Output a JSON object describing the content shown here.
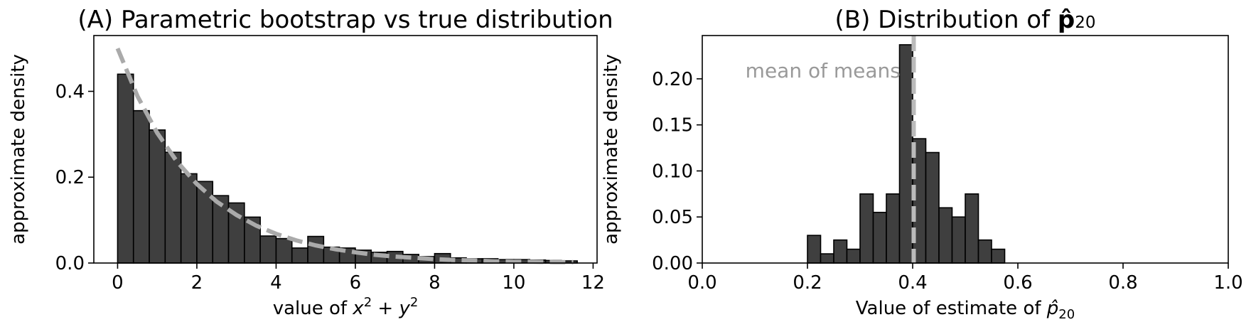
{
  "chart_data": [
    {
      "type": "bar",
      "title": "(A) Parametric bootstrap vs true distribution",
      "xlabel": "value of x² + y²",
      "xlabel_parts": [
        "value of ",
        "x",
        "2",
        " + ",
        "y",
        "2"
      ],
      "ylabel": "approximate density",
      "xlim": [
        -0.6,
        12.1
      ],
      "ylim": [
        0,
        0.53
      ],
      "xticks": [
        0,
        2,
        4,
        6,
        8,
        10,
        12
      ],
      "yticks": [
        0.0,
        0.2,
        0.4
      ],
      "ytick_labels": [
        "0.0",
        "0.2",
        "0.4"
      ],
      "grid": false,
      "bins": {
        "start": 0,
        "width": 0.4,
        "values": [
          0.44,
          0.355,
          0.31,
          0.258,
          0.208,
          0.19,
          0.157,
          0.14,
          0.107,
          0.063,
          0.057,
          0.035,
          0.062,
          0.037,
          0.035,
          0.03,
          0.025,
          0.027,
          0.02,
          0.015,
          0.022,
          0.012,
          0.01,
          0.01,
          0.008,
          0.008,
          0.007,
          0.006,
          0.005
        ]
      },
      "bar_color": "#3f3f3f",
      "curve": {
        "style": "dashed",
        "color": "#aaaaaa",
        "x": [
          0,
          0.5,
          1,
          1.5,
          2,
          2.5,
          3,
          3.5,
          4,
          4.5,
          5,
          5.5,
          6,
          6.5,
          7,
          7.5,
          8,
          8.5,
          9,
          9.5,
          10,
          10.5,
          11,
          11.5
        ],
        "y": [
          0.5,
          0.389,
          0.303,
          0.236,
          0.184,
          0.143,
          0.112,
          0.087,
          0.068,
          0.053,
          0.041,
          0.032,
          0.025,
          0.019,
          0.015,
          0.012,
          0.009,
          0.007,
          0.006,
          0.004,
          0.003,
          0.003,
          0.002,
          0.002
        ]
      }
    },
    {
      "type": "bar",
      "title": "(B) Distribution of p̂₂₀",
      "title_parts": [
        "(B) Distribution of ",
        "p̂",
        "20"
      ],
      "xlabel": "Value of estimate of p̂₂₀",
      "xlabel_parts": [
        "Value of estimate of ",
        "p̂",
        "20"
      ],
      "ylabel": "approximate density",
      "xlim": [
        0,
        1
      ],
      "ylim": [
        0,
        0.247
      ],
      "xticks": [
        0.0,
        0.2,
        0.4,
        0.6,
        0.8,
        1.0
      ],
      "xtick_labels": [
        "0.0",
        "0.2",
        "0.4",
        "0.6",
        "0.8",
        "1.0"
      ],
      "yticks": [
        0.0,
        0.05,
        0.1,
        0.15,
        0.2
      ],
      "ytick_labels": [
        "0.00",
        "0.05",
        "0.10",
        "0.15",
        "0.20"
      ],
      "grid": false,
      "bins": {
        "start": 0.2,
        "width": 0.025,
        "values": [
          0.03,
          0.01,
          0.025,
          0.015,
          0.075,
          0.055,
          0.075,
          0.237,
          0.135,
          0.12,
          0.06,
          0.05,
          0.075,
          0.025,
          0.015
        ]
      },
      "bar_color": "#3f3f3f",
      "mean_line": {
        "x": 0.402,
        "color": "#bbbbbb",
        "style": "dashed"
      },
      "annotation": {
        "text": "mean of means",
        "color": "#999999"
      }
    }
  ]
}
